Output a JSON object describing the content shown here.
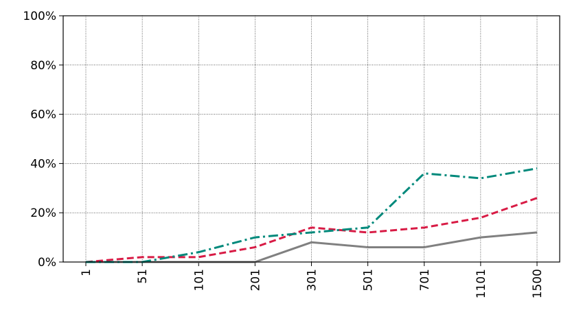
{
  "chart_data": {
    "type": "line",
    "categories": [
      "1",
      "51",
      "101",
      "201",
      "301",
      "501",
      "701",
      "1101",
      "1500"
    ],
    "series": [
      {
        "color": "#808080",
        "linestyle": "solid",
        "values": [
          0,
          0,
          0,
          0,
          8,
          6,
          6,
          10,
          12
        ]
      },
      {
        "color": "#d81b45",
        "linestyle": "dashed",
        "values": [
          0,
          2,
          2,
          6,
          14,
          12,
          14,
          18,
          26
        ]
      },
      {
        "color": "#00897b",
        "linestyle": "dashdot",
        "values": [
          0,
          0,
          4,
          10,
          12,
          14,
          36,
          34,
          38
        ]
      }
    ],
    "ylim": [
      0,
      100
    ],
    "yticks": [
      {
        "value": 0,
        "label": "0%"
      },
      {
        "value": 20,
        "label": "20%"
      },
      {
        "value": 40,
        "label": "40%"
      },
      {
        "value": 60,
        "label": "60%"
      },
      {
        "value": 80,
        "label": "80%"
      },
      {
        "value": 100,
        "label": "100%"
      }
    ],
    "grid": true
  }
}
